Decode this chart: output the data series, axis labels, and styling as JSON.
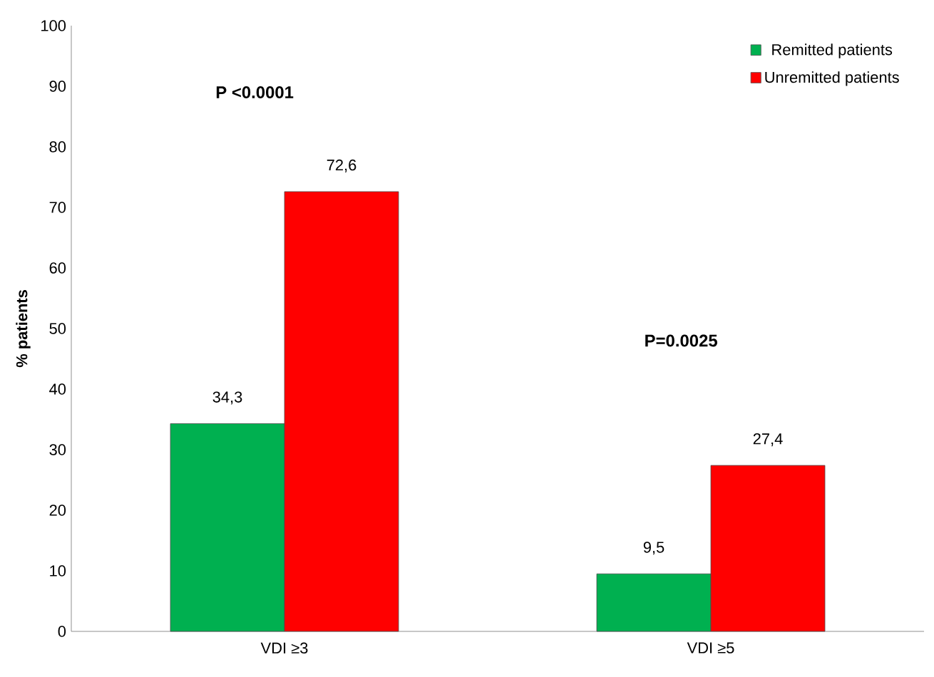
{
  "chart_data": {
    "type": "bar",
    "ylabel": "% patients",
    "categories": [
      "VDI ≥3",
      "VDI ≥5"
    ],
    "series": [
      {
        "name": "Remitted patients",
        "color": "#00b050",
        "values": [
          34.3,
          9.5
        ],
        "value_labels": [
          "34,3",
          "9,5"
        ]
      },
      {
        "name": "Unremitted patients",
        "color": "#ff0000",
        "values": [
          72.6,
          27.4
        ],
        "value_labels": [
          "72,6",
          "27,4"
        ]
      }
    ],
    "ylim": [
      0,
      100
    ],
    "yticks": [
      0,
      10,
      20,
      30,
      40,
      50,
      60,
      70,
      80,
      90,
      100
    ],
    "legend": "top right",
    "annotations": [
      "P <0.0001",
      "P=0.0025"
    ]
  }
}
